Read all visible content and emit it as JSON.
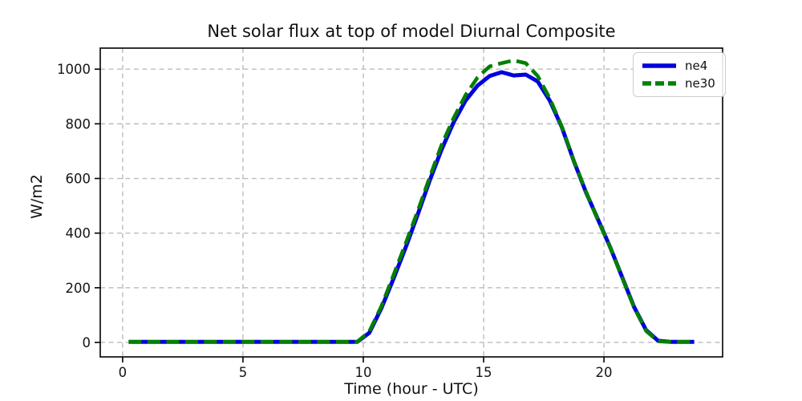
{
  "chart_data": {
    "type": "line",
    "title": "Net solar flux at top of model Diurnal Composite",
    "xlabel": "Time (hour - UTC)",
    "ylabel": "W/m2",
    "xlim": [
      -0.93,
      24.93
    ],
    "ylim": [
      -53,
      1077
    ],
    "xticks": [
      0,
      5,
      10,
      15,
      20
    ],
    "yticks": [
      0,
      200,
      400,
      600,
      800,
      1000
    ],
    "grid": true,
    "grid_color": "#bcbcbc",
    "legend_position": "upper right",
    "x": [
      0.25,
      0.75,
      1.25,
      1.75,
      2.25,
      2.75,
      3.25,
      3.75,
      4.25,
      4.75,
      5.25,
      5.75,
      6.25,
      6.75,
      7.25,
      7.75,
      8.25,
      8.75,
      9.25,
      9.75,
      10.25,
      10.75,
      11.25,
      11.75,
      12.25,
      12.75,
      13.25,
      13.75,
      14.25,
      14.75,
      15.25,
      15.75,
      16.25,
      16.75,
      17.25,
      17.75,
      18.25,
      18.75,
      19.25,
      19.75,
      20.25,
      20.75,
      21.25,
      21.75,
      22.25,
      22.75,
      23.25,
      23.75
    ],
    "series": [
      {
        "name": "ne4",
        "color": "#0202dd",
        "line_style": "solid",
        "line_width": 5,
        "values": [
          2,
          2,
          2,
          2,
          2,
          2,
          2,
          2,
          2,
          2,
          2,
          2,
          2,
          2,
          2,
          2,
          2,
          2,
          2,
          2,
          35,
          125,
          232,
          345,
          465,
          590,
          705,
          805,
          885,
          940,
          975,
          989,
          977,
          980,
          955,
          885,
          788,
          663,
          550,
          450,
          350,
          240,
          130,
          45,
          6,
          2,
          2,
          2
        ]
      },
      {
        "name": "ne30",
        "color": "#038003",
        "line_style": "dashed",
        "line_width": 4.6,
        "values": [
          2,
          2,
          2,
          2,
          2,
          2,
          2,
          2,
          2,
          2,
          2,
          2,
          2,
          2,
          2,
          2,
          2,
          2,
          2,
          2,
          40,
          132,
          245,
          360,
          478,
          602,
          722,
          820,
          905,
          970,
          1010,
          1022,
          1032,
          1022,
          975,
          893,
          790,
          665,
          552,
          447,
          350,
          238,
          128,
          42,
          4,
          2,
          2,
          2
        ]
      }
    ]
  }
}
